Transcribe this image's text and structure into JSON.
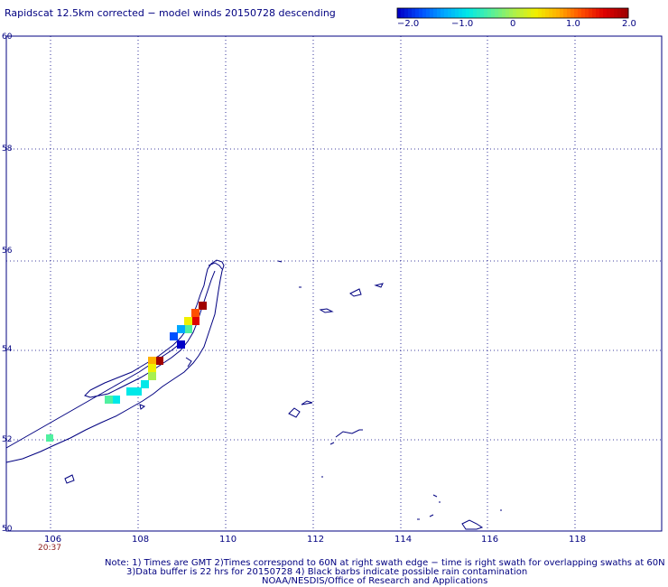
{
  "header": {
    "title": "Rapidscat 12.5km corrected − model winds 20150728 descending"
  },
  "colorbar": {
    "labels": [
      "−2.0",
      "−1.0",
      "0",
      "1.0",
      "2.0"
    ],
    "colors": [
      "#0000c8",
      "#0050ff",
      "#00a8ff",
      "#00e8e8",
      "#50f0a0",
      "#a8f050",
      "#f0f000",
      "#ffb000",
      "#ff5000",
      "#e00000",
      "#a00000"
    ]
  },
  "map": {
    "lon_ticks": [
      "106",
      "108",
      "110",
      "112",
      "114",
      "116",
      "118"
    ],
    "lat_ticks": [
      "60",
      "58",
      "56",
      "54",
      "52",
      "50"
    ],
    "pass_time": "20:37"
  },
  "notes": {
    "line1": "Note: 1) Times are GMT 2)Times correspond to 60N at right swath edge − time is right swath for overlapping swaths at 60N",
    "line2": "3)Data buffer is 22 hrs for 20150728 4) Black barbs indicate possible rain contamination",
    "line3": "NOAA/NESDIS/Office of Research and Applications"
  }
}
